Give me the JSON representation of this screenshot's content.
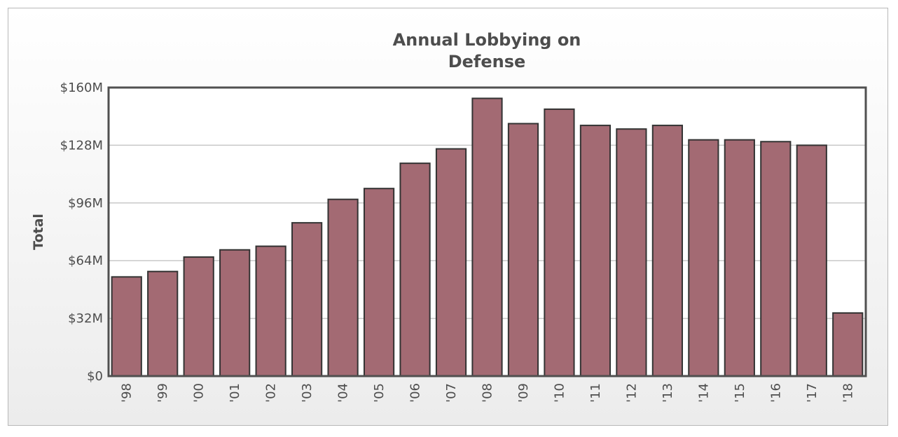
{
  "chart_data": {
    "type": "bar",
    "title": "Annual Lobbying on Defense",
    "title_lines": [
      "Annual Lobbying on",
      "Defense"
    ],
    "xlabel": "",
    "ylabel": "Total",
    "categories": [
      "'98",
      "'99",
      "'00",
      "'01",
      "'02",
      "'03",
      "'04",
      "'05",
      "'06",
      "'07",
      "'08",
      "'09",
      "'10",
      "'11",
      "'12",
      "'13",
      "'14",
      "'15",
      "'16",
      "'17",
      "'18"
    ],
    "values": [
      55,
      58,
      66,
      70,
      72,
      85,
      98,
      104,
      118,
      126,
      154,
      140,
      148,
      139,
      137,
      139,
      131,
      131,
      130,
      128,
      35
    ],
    "units": "$M",
    "ylim": [
      0,
      160
    ],
    "yticks": [
      0,
      32,
      64,
      96,
      128,
      160
    ],
    "ytick_labels": [
      "$0",
      "$32M",
      "$64M",
      "$96M",
      "$128M",
      "$160M"
    ],
    "grid": true,
    "bar_color": "#a36a73",
    "bar_stroke": "#333333"
  }
}
